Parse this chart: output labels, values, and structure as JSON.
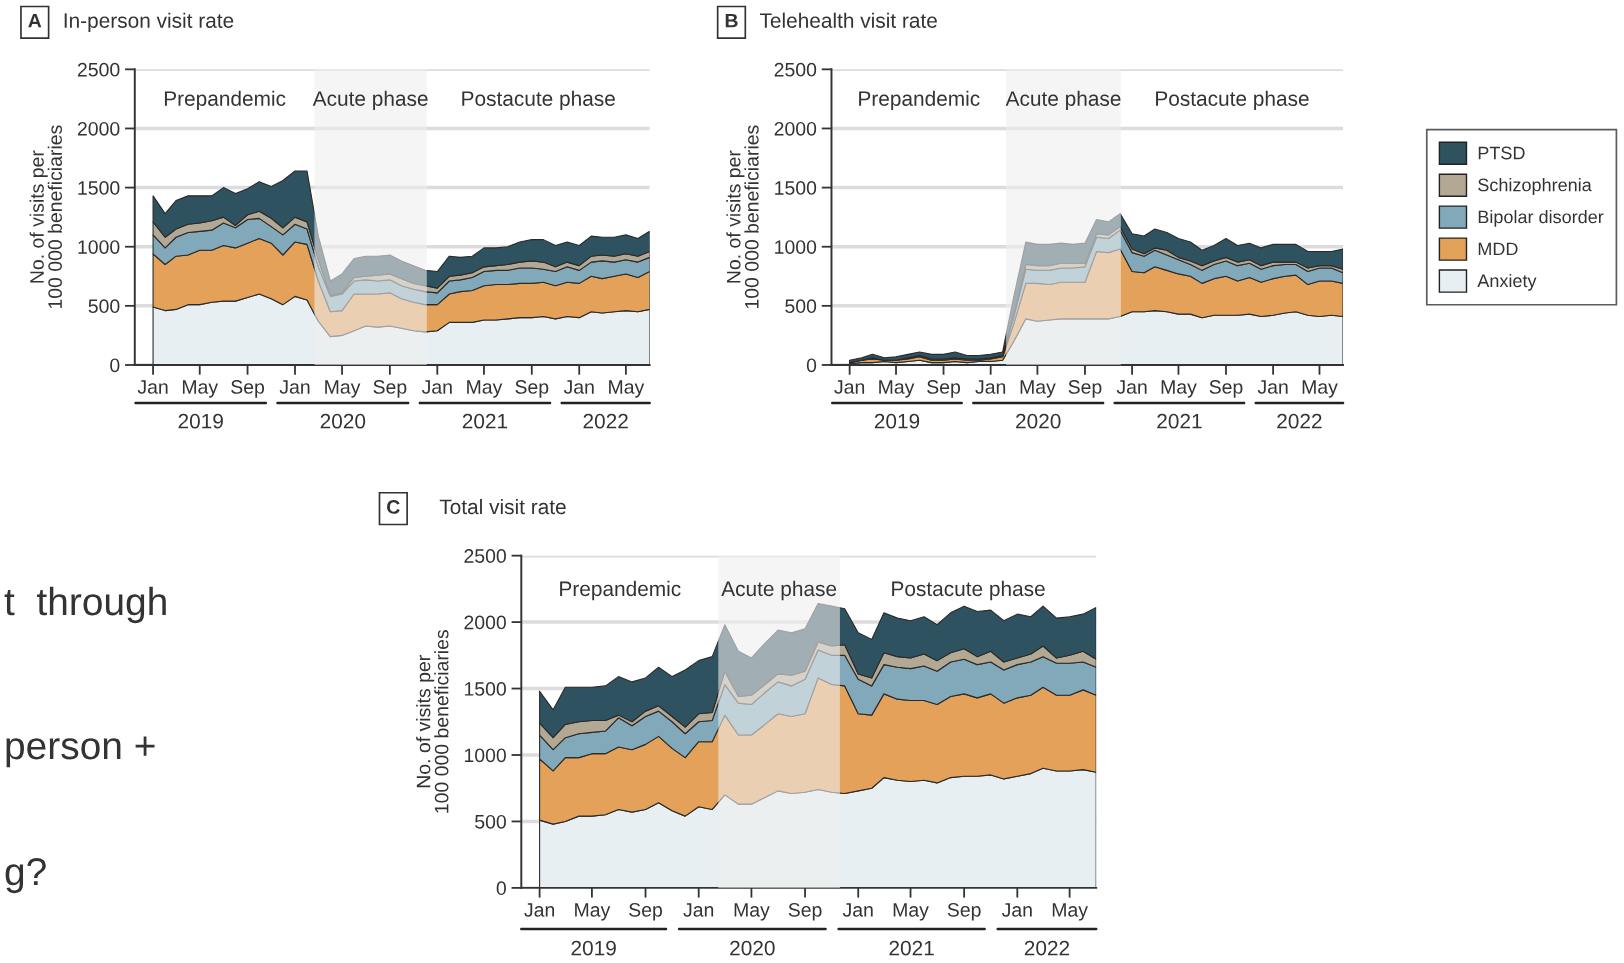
{
  "chart_data": [
    {
      "type": "area",
      "stacked": true,
      "title": "In-person visit rate",
      "ylabel": "No. of visits per\n100 000 beneficiaries",
      "x": [
        "2019-01",
        "2019-02",
        "2019-03",
        "2019-04",
        "2019-05",
        "2019-06",
        "2019-07",
        "2019-08",
        "2019-09",
        "2019-10",
        "2019-11",
        "2019-12",
        "2020-01",
        "2020-02",
        "2020-03",
        "2020-04",
        "2020-05",
        "2020-06",
        "2020-07",
        "2020-08",
        "2020-09",
        "2020-10",
        "2020-11",
        "2020-12",
        "2021-01",
        "2021-02",
        "2021-03",
        "2021-04",
        "2021-05",
        "2021-06",
        "2021-07",
        "2021-08",
        "2021-09",
        "2021-10",
        "2021-11",
        "2021-12",
        "2022-01",
        "2022-02",
        "2022-03",
        "2022-04",
        "2022-05",
        "2022-06",
        "2022-07"
      ],
      "series": [
        {
          "color": "#e8eff3",
          "values": [
            490,
            460,
            470,
            510,
            510,
            530,
            540,
            540,
            570,
            600,
            560,
            510,
            580,
            550,
            370,
            240,
            250,
            290,
            330,
            320,
            330,
            310,
            290,
            280,
            290,
            360,
            360,
            360,
            380,
            380,
            390,
            400,
            400,
            410,
            390,
            410,
            400,
            450,
            440,
            450,
            460,
            450,
            470
          ]
        },
        {
          "color": "#e3a15a",
          "values": [
            450,
            390,
            450,
            420,
            460,
            440,
            470,
            450,
            460,
            470,
            470,
            420,
            460,
            470,
            340,
            210,
            210,
            310,
            270,
            280,
            280,
            250,
            240,
            230,
            220,
            240,
            260,
            270,
            290,
            300,
            290,
            290,
            290,
            290,
            280,
            290,
            290,
            300,
            290,
            300,
            310,
            290,
            320
          ]
        },
        {
          "color": "#81a9b9",
          "values": [
            160,
            140,
            160,
            190,
            160,
            170,
            190,
            170,
            200,
            170,
            140,
            170,
            150,
            130,
            120,
            130,
            140,
            110,
            120,
            110,
            110,
            110,
            110,
            110,
            100,
            110,
            100,
            110,
            120,
            120,
            120,
            130,
            130,
            110,
            120,
            130,
            110,
            120,
            150,
            120,
            120,
            130,
            120
          ]
        },
        {
          "color": "#b2a893",
          "values": [
            110,
            90,
            70,
            70,
            70,
            80,
            50,
            20,
            40,
            60,
            70,
            60,
            60,
            60,
            60,
            10,
            10,
            30,
            30,
            50,
            50,
            60,
            50,
            50,
            40,
            40,
            40,
            40,
            40,
            40,
            50,
            50,
            60,
            60,
            40,
            40,
            40,
            50,
            50,
            50,
            50,
            50,
            50
          ]
        },
        {
          "color": "#2f5260",
          "values": [
            220,
            200,
            240,
            240,
            230,
            210,
            250,
            270,
            220,
            250,
            270,
            400,
            390,
            430,
            200,
            120,
            160,
            160,
            170,
            160,
            160,
            150,
            150,
            130,
            140,
            170,
            150,
            140,
            160,
            150,
            150,
            170,
            180,
            190,
            180,
            170,
            170,
            170,
            150,
            160,
            160,
            150,
            170
          ]
        }
      ],
      "xlim": [
        "2018-11-15",
        "2022-07-01"
      ],
      "ylim": [
        0,
        2500
      ],
      "yticks": [
        0,
        500,
        1000,
        1500,
        2000,
        2500
      ],
      "xticks": [
        {
          "value": "2019-01",
          "label": "Jan"
        },
        {
          "value": "2019-05",
          "label": "May"
        },
        {
          "value": "2019-09",
          "label": "Sep"
        },
        {
          "value": "2020-01",
          "label": "Jan"
        },
        {
          "value": "2020-05",
          "label": "May"
        },
        {
          "value": "2020-09",
          "label": "Sep"
        },
        {
          "value": "2021-01",
          "label": "Jan"
        },
        {
          "value": "2021-05",
          "label": "May"
        },
        {
          "value": "2021-09",
          "label": "Sep"
        },
        {
          "value": "2022-01",
          "label": "Jan"
        },
        {
          "value": "2022-05",
          "label": "May"
        }
      ],
      "grid": "y",
      "bands": [
        {
          "axis": "x",
          "from": "2020-02-20",
          "to": "2020-12-05",
          "label": "Acute phase",
          "color": "#eeeeee"
        }
      ],
      "annotations": [
        "A",
        "2019",
        "2020",
        "2021",
        "2022",
        "Prepandemic",
        "Postacute phase"
      ]
    },
    {
      "type": "area",
      "stacked": true,
      "title": "Telehealth visit rate",
      "ylabel": "No. of visits per\n100 000 beneficiaries",
      "x": [
        "2019-01",
        "2019-02",
        "2019-03",
        "2019-04",
        "2019-05",
        "2019-06",
        "2019-07",
        "2019-08",
        "2019-09",
        "2019-10",
        "2019-11",
        "2019-12",
        "2020-01",
        "2020-02",
        "2020-03",
        "2020-04",
        "2020-05",
        "2020-06",
        "2020-07",
        "2020-08",
        "2020-09",
        "2020-10",
        "2020-11",
        "2020-12",
        "2021-01",
        "2021-02",
        "2021-03",
        "2021-04",
        "2021-05",
        "2021-06",
        "2021-07",
        "2021-08",
        "2021-09",
        "2021-10",
        "2021-11",
        "2021-12",
        "2022-01",
        "2022-02",
        "2022-03",
        "2022-04",
        "2022-05",
        "2022-06",
        "2022-07"
      ],
      "series": [
        {
          "name": "Anxiety",
          "color": "#e8eff3",
          "values": [
            10,
            20,
            20,
            30,
            20,
            30,
            40,
            20,
            20,
            30,
            20,
            30,
            30,
            40,
            200,
            390,
            370,
            380,
            390,
            390,
            390,
            390,
            390,
            410,
            450,
            450,
            460,
            450,
            430,
            430,
            400,
            420,
            420,
            420,
            430,
            410,
            420,
            440,
            450,
            420,
            410,
            420,
            410
          ]
        },
        {
          "name": "MDD",
          "color": "#e3a15a",
          "values": [
            10,
            20,
            30,
            10,
            20,
            20,
            30,
            20,
            20,
            20,
            20,
            10,
            20,
            30,
            150,
            300,
            320,
            300,
            310,
            310,
            310,
            570,
            560,
            570,
            340,
            330,
            370,
            350,
            340,
            320,
            290,
            310,
            330,
            290,
            310,
            290,
            310,
            310,
            310,
            260,
            300,
            290,
            280
          ]
        },
        {
          "name": "Bipolar disorder",
          "color": "#81a9b9",
          "values": [
            0,
            0,
            10,
            0,
            0,
            10,
            10,
            10,
            10,
            10,
            10,
            10,
            10,
            10,
            60,
            120,
            110,
            120,
            120,
            120,
            130,
            120,
            120,
            160,
            160,
            140,
            140,
            130,
            120,
            100,
            110,
            120,
            130,
            130,
            120,
            110,
            110,
            100,
            90,
            110,
            110,
            110,
            90
          ]
        },
        {
          "name": "Schizophrenia",
          "color": "#b2a893",
          "values": [
            0,
            0,
            0,
            0,
            0,
            0,
            0,
            0,
            0,
            0,
            0,
            0,
            0,
            0,
            20,
            40,
            40,
            40,
            40,
            40,
            30,
            30,
            30,
            30,
            30,
            20,
            20,
            40,
            20,
            30,
            40,
            30,
            30,
            30,
            30,
            30,
            30,
            20,
            20,
            30,
            20,
            20,
            30
          ]
        },
        {
          "name": "PTSD",
          "color": "#2f5260",
          "values": [
            20,
            20,
            30,
            20,
            30,
            30,
            30,
            40,
            40,
            50,
            30,
            30,
            30,
            30,
            150,
            190,
            180,
            180,
            170,
            160,
            170,
            120,
            110,
            110,
            130,
            150,
            160,
            150,
            160,
            160,
            130,
            130,
            160,
            140,
            140,
            150,
            150,
            150,
            150,
            140,
            120,
            120,
            170
          ]
        }
      ],
      "xlim": [
        "2018-11-15",
        "2022-07-01"
      ],
      "ylim": [
        0,
        2500
      ],
      "yticks": [
        0,
        500,
        1000,
        1500,
        2000,
        2500
      ],
      "xticks": [
        {
          "value": "2019-01",
          "label": "Jan"
        },
        {
          "value": "2019-05",
          "label": "May"
        },
        {
          "value": "2019-09",
          "label": "Sep"
        },
        {
          "value": "2020-01",
          "label": "Jan"
        },
        {
          "value": "2020-05",
          "label": "May"
        },
        {
          "value": "2020-09",
          "label": "Sep"
        },
        {
          "value": "2021-01",
          "label": "Jan"
        },
        {
          "value": "2021-05",
          "label": "May"
        },
        {
          "value": "2021-09",
          "label": "Sep"
        },
        {
          "value": "2022-01",
          "label": "Jan"
        },
        {
          "value": "2022-05",
          "label": "May"
        }
      ],
      "grid": "y",
      "legend": "right",
      "bands": [
        {
          "axis": "x",
          "from": "2020-02-10",
          "to": "2020-12-03",
          "label": "Acute phase",
          "color": "#eeeeee"
        }
      ],
      "annotations": [
        "B",
        "2019",
        "2020",
        "2021",
        "2022",
        "Prepandemic",
        "Postacute phase"
      ]
    },
    {
      "type": "area",
      "stacked": true,
      "title": "Total visit rate",
      "ylabel": "No. of visits per\n100 000 beneficiaries",
      "x": [
        "2019-01",
        "2019-02",
        "2019-03",
        "2019-04",
        "2019-05",
        "2019-06",
        "2019-07",
        "2019-08",
        "2019-09",
        "2019-10",
        "2019-11",
        "2019-12",
        "2020-01",
        "2020-02",
        "2020-03",
        "2020-04",
        "2020-05",
        "2020-06",
        "2020-07",
        "2020-08",
        "2020-09",
        "2020-10",
        "2020-11",
        "2020-12",
        "2021-01",
        "2021-02",
        "2021-03",
        "2021-04",
        "2021-05",
        "2021-06",
        "2021-07",
        "2021-08",
        "2021-09",
        "2021-10",
        "2021-11",
        "2021-12",
        "2022-01",
        "2022-02",
        "2022-03",
        "2022-04",
        "2022-05",
        "2022-06",
        "2022-07"
      ],
      "series": [
        {
          "color": "#e8eff3",
          "values": [
            510,
            480,
            500,
            540,
            540,
            550,
            590,
            570,
            590,
            640,
            580,
            540,
            610,
            590,
            700,
            630,
            630,
            680,
            730,
            710,
            720,
            740,
            720,
            710,
            730,
            750,
            830,
            810,
            800,
            810,
            790,
            830,
            840,
            840,
            850,
            820,
            840,
            860,
            900,
            880,
            880,
            890,
            870
          ]
        },
        {
          "color": "#e3a15a",
          "values": [
            460,
            400,
            480,
            440,
            470,
            460,
            470,
            470,
            490,
            500,
            470,
            440,
            490,
            510,
            600,
            520,
            520,
            550,
            580,
            580,
            590,
            840,
            810,
            810,
            580,
            550,
            630,
            610,
            610,
            600,
            590,
            610,
            620,
            590,
            610,
            570,
            590,
            590,
            610,
            570,
            570,
            600,
            580
          ]
        },
        {
          "color": "#81a9b9",
          "values": [
            180,
            160,
            150,
            180,
            160,
            170,
            220,
            180,
            210,
            190,
            200,
            180,
            150,
            160,
            230,
            240,
            230,
            240,
            240,
            230,
            260,
            210,
            220,
            230,
            260,
            220,
            220,
            240,
            240,
            260,
            250,
            260,
            260,
            250,
            240,
            250,
            250,
            250,
            230,
            240,
            240,
            210,
            210
          ]
        },
        {
          "color": "#b2a893",
          "values": [
            90,
            90,
            100,
            90,
            90,
            80,
            20,
            30,
            40,
            40,
            40,
            50,
            60,
            60,
            100,
            50,
            70,
            60,
            60,
            80,
            60,
            60,
            70,
            80,
            40,
            60,
            90,
            80,
            80,
            90,
            80,
            70,
            80,
            60,
            80,
            60,
            50,
            60,
            80,
            40,
            60,
            80,
            60
          ]
        },
        {
          "color": "#2f5260",
          "values": [
            240,
            210,
            280,
            260,
            250,
            260,
            290,
            300,
            250,
            290,
            300,
            430,
            400,
            420,
            350,
            340,
            280,
            310,
            330,
            320,
            320,
            290,
            300,
            270,
            310,
            290,
            300,
            290,
            280,
            280,
            270,
            300,
            320,
            340,
            310,
            310,
            330,
            280,
            300,
            300,
            290,
            280,
            390
          ]
        }
      ],
      "xlim": [
        "2018-11-20",
        "2022-07-01"
      ],
      "ylim": [
        0,
        2500
      ],
      "yticks": [
        0,
        500,
        1000,
        1500,
        2000,
        2500
      ],
      "xticks": [
        {
          "value": "2019-01",
          "label": "Jan"
        },
        {
          "value": "2019-05",
          "label": "May"
        },
        {
          "value": "2019-09",
          "label": "Sep"
        },
        {
          "value": "2020-01",
          "label": "Jan"
        },
        {
          "value": "2020-05",
          "label": "May"
        },
        {
          "value": "2020-09",
          "label": "Sep"
        },
        {
          "value": "2021-01",
          "label": "Jan"
        },
        {
          "value": "2021-05",
          "label": "May"
        },
        {
          "value": "2021-09",
          "label": "Sep"
        },
        {
          "value": "2022-01",
          "label": "Jan"
        },
        {
          "value": "2022-05",
          "label": "May"
        }
      ],
      "grid": "y",
      "bands": [
        {
          "axis": "x",
          "from": "2020-02-15",
          "to": "2020-11-20",
          "label": "Acute phase",
          "color": "#eeeeee"
        }
      ],
      "annotations": [
        "C",
        "2019",
        "2020",
        "2021",
        "2022",
        "Prepandemic",
        "Postacute phase"
      ]
    },
    {
      "type": "other",
      "annotations": [
        "t  through",
        "person +",
        "g?"
      ]
    }
  ]
}
